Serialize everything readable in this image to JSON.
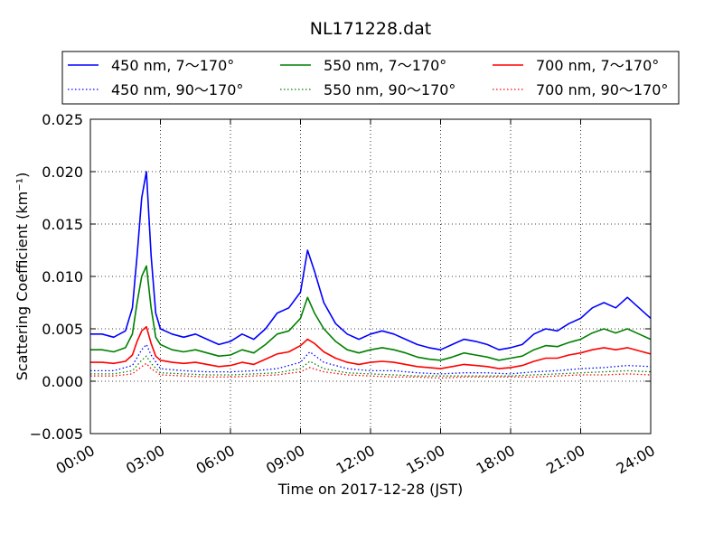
{
  "chart_data": {
    "type": "line",
    "title": "NL171228.dat",
    "xlabel": "Time on 2017-12-28 (JST)",
    "ylabel": "Scattering Coefficient (km⁻¹)",
    "xlim": [
      0,
      24
    ],
    "ylim": [
      -0.005,
      0.025
    ],
    "xticks": [
      "00:00",
      "03:00",
      "06:00",
      "09:00",
      "12:00",
      "15:00",
      "18:00",
      "21:00",
      "24:00"
    ],
    "yticks": [
      "−0.005",
      "0.000",
      "0.005",
      "0.010",
      "0.015",
      "0.020",
      "0.025"
    ],
    "grid": true,
    "legend_position": "top, above plot, 3 columns",
    "series": [
      {
        "name": "450 nm, 7～170°",
        "color": "#0000ff",
        "style": "solid",
        "x": [
          0,
          0.5,
          1,
          1.5,
          1.8,
          2,
          2.2,
          2.4,
          2.6,
          2.8,
          3,
          3.5,
          4,
          4.5,
          5,
          5.5,
          6,
          6.5,
          7,
          7.5,
          8,
          8.5,
          9,
          9.3,
          9.6,
          10,
          10.5,
          11,
          11.5,
          12,
          12.5,
          13,
          13.5,
          14,
          14.5,
          15,
          15.5,
          16,
          16.5,
          17,
          17.5,
          18,
          18.5,
          19,
          19.5,
          20,
          20.5,
          21,
          21.5,
          22,
          22.5,
          23,
          23.5,
          24
        ],
        "y": [
          0.0045,
          0.0045,
          0.0042,
          0.0048,
          0.007,
          0.012,
          0.0175,
          0.02,
          0.012,
          0.0065,
          0.005,
          0.0045,
          0.0042,
          0.0045,
          0.004,
          0.0035,
          0.0038,
          0.0045,
          0.004,
          0.005,
          0.0065,
          0.007,
          0.0085,
          0.0125,
          0.0105,
          0.0075,
          0.0055,
          0.0045,
          0.004,
          0.0045,
          0.0048,
          0.0045,
          0.004,
          0.0035,
          0.0032,
          0.003,
          0.0035,
          0.004,
          0.0038,
          0.0035,
          0.003,
          0.0032,
          0.0035,
          0.0045,
          0.005,
          0.0048,
          0.0055,
          0.006,
          0.007,
          0.0075,
          0.007,
          0.008,
          0.007,
          0.006
        ]
      },
      {
        "name": "450 nm, 90～170°",
        "color": "#0000ff",
        "style": "dotted",
        "x": [
          0,
          1,
          1.8,
          2.2,
          2.4,
          2.6,
          3,
          4,
          5,
          6,
          7,
          8,
          9,
          9.4,
          10,
          11,
          12,
          13,
          14,
          15,
          16,
          17,
          18,
          19,
          20,
          21,
          22,
          23,
          24
        ],
        "y": [
          0.001,
          0.001,
          0.0015,
          0.003,
          0.0035,
          0.0025,
          0.0012,
          0.001,
          0.0009,
          0.0009,
          0.001,
          0.0012,
          0.0018,
          0.0028,
          0.0018,
          0.0012,
          0.001,
          0.001,
          0.0008,
          0.0007,
          0.0008,
          0.0008,
          0.0007,
          0.0009,
          0.001,
          0.0012,
          0.0013,
          0.0015,
          0.0014
        ]
      },
      {
        "name": "550 nm, 7～170°",
        "color": "#008000",
        "style": "solid",
        "x": [
          0,
          0.5,
          1,
          1.5,
          1.8,
          2,
          2.2,
          2.4,
          2.6,
          2.8,
          3,
          3.5,
          4,
          4.5,
          5,
          5.5,
          6,
          6.5,
          7,
          7.5,
          8,
          8.5,
          9,
          9.3,
          9.6,
          10,
          10.5,
          11,
          11.5,
          12,
          12.5,
          13,
          13.5,
          14,
          14.5,
          15,
          15.5,
          16,
          16.5,
          17,
          17.5,
          18,
          18.5,
          19,
          19.5,
          20,
          20.5,
          21,
          21.5,
          22,
          22.5,
          23,
          23.5,
          24
        ],
        "y": [
          0.003,
          0.003,
          0.0028,
          0.0032,
          0.0045,
          0.0075,
          0.01,
          0.011,
          0.007,
          0.0042,
          0.0035,
          0.003,
          0.0028,
          0.003,
          0.0027,
          0.0024,
          0.0025,
          0.003,
          0.0027,
          0.0035,
          0.0045,
          0.0048,
          0.006,
          0.008,
          0.0065,
          0.005,
          0.0038,
          0.003,
          0.0027,
          0.003,
          0.0032,
          0.003,
          0.0027,
          0.0023,
          0.0021,
          0.002,
          0.0023,
          0.0027,
          0.0025,
          0.0023,
          0.002,
          0.0022,
          0.0024,
          0.003,
          0.0034,
          0.0033,
          0.0037,
          0.004,
          0.0046,
          0.005,
          0.0046,
          0.005,
          0.0045,
          0.004
        ]
      },
      {
        "name": "550 nm, 90～170°",
        "color": "#008000",
        "style": "dotted",
        "x": [
          0,
          1,
          1.8,
          2.2,
          2.4,
          2.6,
          3,
          4,
          5,
          6,
          7,
          8,
          9,
          9.4,
          10,
          11,
          12,
          13,
          14,
          15,
          16,
          17,
          18,
          19,
          20,
          21,
          22,
          23,
          24
        ],
        "y": [
          0.0007,
          0.0007,
          0.001,
          0.002,
          0.0024,
          0.0017,
          0.0008,
          0.0007,
          0.0006,
          0.0006,
          0.0007,
          0.0008,
          0.0012,
          0.0019,
          0.0012,
          0.0008,
          0.0007,
          0.0006,
          0.0005,
          0.0005,
          0.0005,
          0.0005,
          0.0005,
          0.0006,
          0.0007,
          0.0008,
          0.0009,
          0.001,
          0.0009
        ]
      },
      {
        "name": "700 nm, 7～170°",
        "color": "#ff0000",
        "style": "solid",
        "x": [
          0,
          0.5,
          1,
          1.5,
          1.8,
          2,
          2.2,
          2.4,
          2.6,
          2.8,
          3,
          3.5,
          4,
          4.5,
          5,
          5.5,
          6,
          6.5,
          7,
          7.5,
          8,
          8.5,
          9,
          9.3,
          9.6,
          10,
          10.5,
          11,
          11.5,
          12,
          12.5,
          13,
          13.5,
          14,
          14.5,
          15,
          15.5,
          16,
          16.5,
          17,
          17.5,
          18,
          18.5,
          19,
          19.5,
          20,
          20.5,
          21,
          21.5,
          22,
          22.5,
          23,
          23.5,
          24
        ],
        "y": [
          0.0018,
          0.0018,
          0.0017,
          0.0019,
          0.0025,
          0.0038,
          0.0048,
          0.0052,
          0.0036,
          0.0024,
          0.002,
          0.0018,
          0.0017,
          0.0018,
          0.0016,
          0.0014,
          0.0015,
          0.0018,
          0.0016,
          0.0021,
          0.0026,
          0.0028,
          0.0034,
          0.004,
          0.0036,
          0.0028,
          0.0022,
          0.0018,
          0.0016,
          0.0018,
          0.0019,
          0.0018,
          0.0016,
          0.0014,
          0.0013,
          0.0012,
          0.0014,
          0.0016,
          0.0015,
          0.0014,
          0.0012,
          0.0013,
          0.0015,
          0.0019,
          0.0022,
          0.0022,
          0.0025,
          0.0027,
          0.003,
          0.0032,
          0.003,
          0.0032,
          0.0029,
          0.0026
        ]
      },
      {
        "name": "700 nm, 90～170°",
        "color": "#ff0000",
        "style": "dotted",
        "x": [
          0,
          1,
          1.8,
          2.2,
          2.4,
          2.6,
          3,
          4,
          5,
          6,
          7,
          8,
          9,
          9.4,
          10,
          11,
          12,
          13,
          14,
          15,
          16,
          17,
          18,
          19,
          20,
          21,
          22,
          23,
          24
        ],
        "y": [
          0.0005,
          0.0005,
          0.0007,
          0.0014,
          0.0017,
          0.0012,
          0.0006,
          0.0005,
          0.0004,
          0.0004,
          0.0005,
          0.0006,
          0.0009,
          0.0013,
          0.0009,
          0.0006,
          0.0005,
          0.0004,
          0.0004,
          0.0003,
          0.0004,
          0.0004,
          0.0004,
          0.0004,
          0.0005,
          0.0006,
          0.0006,
          0.0007,
          0.0006
        ]
      }
    ]
  }
}
